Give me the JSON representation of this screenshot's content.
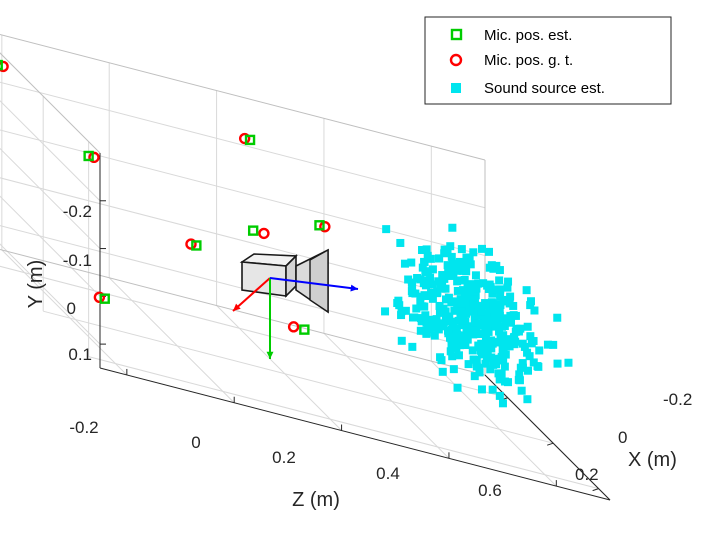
{
  "chart_data": {
    "type": "scatter3d",
    "axes": {
      "x": {
        "label": "X (m)",
        "ticks": [
          "-0.2",
          "0",
          "0.2"
        ]
      },
      "y": {
        "label": "Y (m)",
        "ticks": [
          "-0.2",
          "-0.1",
          "0",
          "0.1"
        ]
      },
      "z": {
        "label": "Z (m)",
        "ticks": [
          "-0.2",
          "0",
          "0.2",
          "0.4",
          "0.6"
        ]
      }
    },
    "grid": true,
    "legend_position": "top-right",
    "legend": [
      {
        "name": "Mic. pos. est.",
        "marker": "open-square",
        "color": "#00cc00"
      },
      {
        "name": "Mic. pos. g. t.",
        "marker": "open-circle",
        "color": "#ff0000"
      },
      {
        "name": "Sound source est.",
        "marker": "filled-square",
        "color": "#00e5ee"
      }
    ],
    "mic_pairs": [
      {
        "est": [
          -0.2,
          -0.27,
          -0.25
        ],
        "gt": [
          -0.2,
          -0.27,
          -0.24
        ]
      },
      {
        "est": [
          0.2,
          -0.27,
          -0.25
        ],
        "gt": [
          0.2,
          -0.27,
          -0.24
        ]
      },
      {
        "est": [
          0.2,
          -0.25,
          0.18
        ],
        "gt": [
          0.2,
          -0.25,
          0.19
        ]
      },
      {
        "est": [
          -0.2,
          -0.25,
          0.22
        ],
        "gt": [
          -0.2,
          -0.25,
          0.21
        ]
      },
      {
        "est": [
          0.05,
          -0.15,
          0.12
        ],
        "gt": [
          0.05,
          -0.15,
          0.14
        ]
      },
      {
        "est": [
          0.2,
          0.02,
          -0.22
        ],
        "gt": [
          0.2,
          0.02,
          -0.23
        ]
      },
      {
        "est": [
          -0.2,
          0.0,
          0.12
        ],
        "gt": [
          -0.2,
          0.0,
          0.11
        ]
      },
      {
        "est": [
          -0.15,
          0.1,
          0.3
        ],
        "gt": [
          -0.15,
          0.1,
          0.28
        ]
      }
    ],
    "sound_source_cloud": {
      "count": 380,
      "x_range": [
        -0.25,
        0.25
      ],
      "y_range": [
        -0.25,
        0.1
      ],
      "z_range": [
        0.4,
        0.7
      ]
    },
    "camera_axes": [
      {
        "axis": "X",
        "color": "#ff0000"
      },
      {
        "axis": "Y",
        "color": "#00cc00"
      },
      {
        "axis": "Z",
        "color": "#0000ff"
      }
    ],
    "colors": {
      "mic_est": "#00cc00",
      "mic_gt": "#ff0000",
      "sound_source": "#00e5ee",
      "grid": "#d9d9d9",
      "axis": "#262626"
    }
  }
}
